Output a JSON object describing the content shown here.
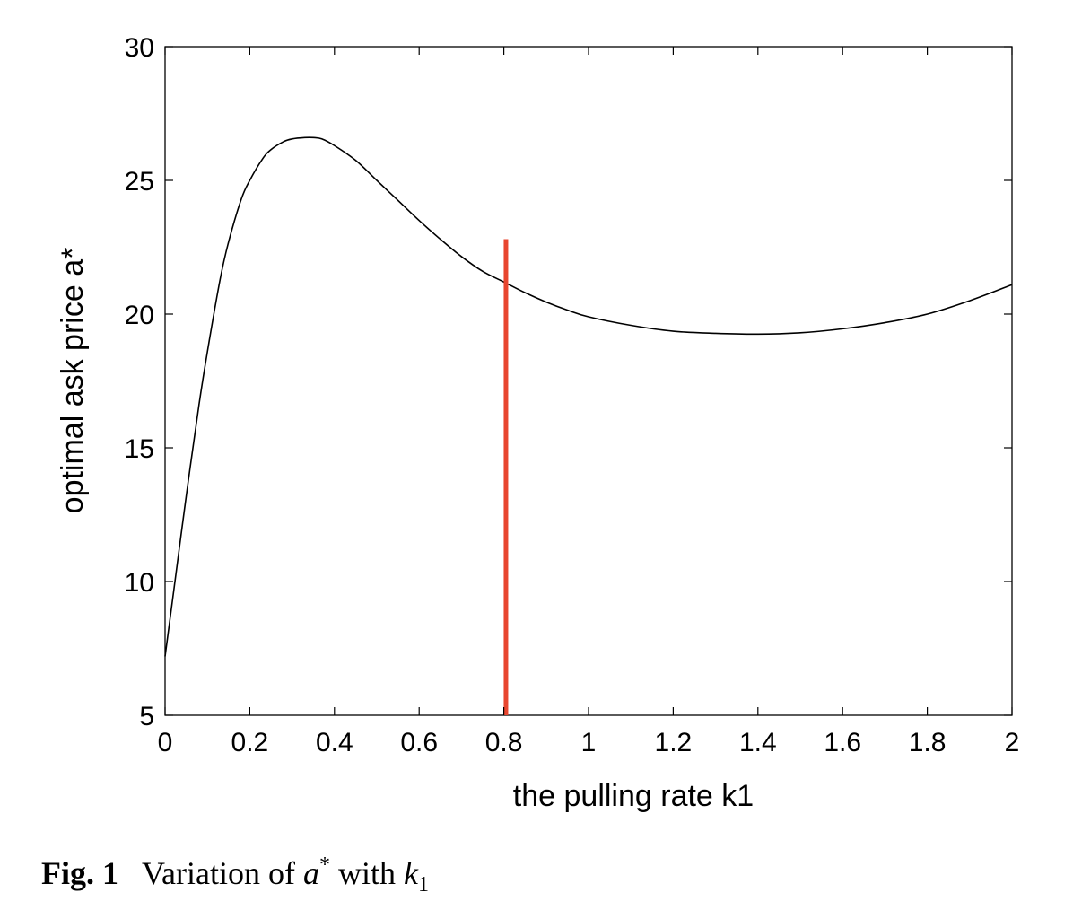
{
  "chart_data": {
    "type": "line",
    "xlabel": "the pulling rate k1",
    "ylabel": "optimal ask price a*",
    "xlim": [
      0,
      2
    ],
    "ylim": [
      5,
      30
    ],
    "xticks": [
      0,
      0.2,
      0.4,
      0.6,
      0.8,
      1,
      1.2,
      1.4,
      1.6,
      1.8,
      2
    ],
    "xtick_labels": [
      "0",
      "0.2",
      "0.4",
      "0.6",
      "0.8",
      "1",
      "1.2",
      "1.4",
      "1.6",
      "1.8",
      "2"
    ],
    "yticks": [
      5,
      10,
      15,
      20,
      25,
      30
    ],
    "ytick_labels": [
      "5",
      "10",
      "15",
      "20",
      "25",
      "30"
    ],
    "grid": false,
    "series": [
      {
        "color": "#000000",
        "x": [
          0,
          0.02,
          0.05,
          0.08,
          0.1,
          0.13,
          0.15,
          0.18,
          0.2,
          0.23,
          0.25,
          0.28,
          0.3,
          0.33,
          0.35,
          0.37,
          0.4,
          0.45,
          0.5,
          0.55,
          0.6,
          0.65,
          0.7,
          0.75,
          0.8,
          0.85,
          0.9,
          0.95,
          1.0,
          1.1,
          1.2,
          1.3,
          1.4,
          1.5,
          1.6,
          1.7,
          1.8,
          1.9,
          2.0
        ],
        "y": [
          7.2,
          9.6,
          13.2,
          16.6,
          18.6,
          21.3,
          22.7,
          24.3,
          25.0,
          25.8,
          26.15,
          26.45,
          26.55,
          26.6,
          26.6,
          26.55,
          26.3,
          25.75,
          25.0,
          24.25,
          23.5,
          22.8,
          22.15,
          21.6,
          21.2,
          20.8,
          20.45,
          20.15,
          19.9,
          19.58,
          19.36,
          19.28,
          19.25,
          19.3,
          19.45,
          19.68,
          20.0,
          20.5,
          21.1
        ]
      }
    ],
    "marker_line": {
      "color": "#e8462f",
      "x": 0.805,
      "y_range": [
        5,
        22.8
      ]
    }
  },
  "caption": {
    "label": "Fig. 1",
    "text_prefix": "Variation of ",
    "var_a": "a",
    "superscript": "*",
    "text_mid": " with ",
    "var_k": "k",
    "subscript": "1"
  }
}
